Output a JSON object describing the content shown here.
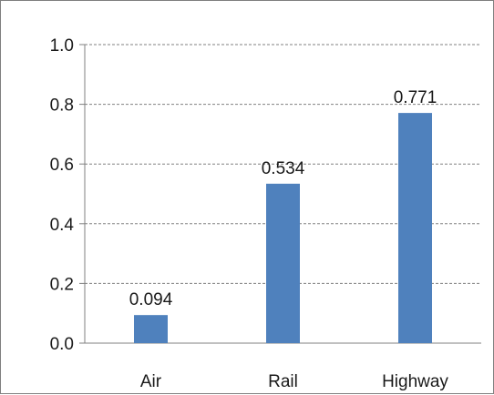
{
  "chart_data": {
    "type": "bar",
    "title": "",
    "xlabel": "",
    "ylabel": "",
    "categories": [
      "Air",
      "Rail",
      "Highway"
    ],
    "values": [
      0.094,
      0.534,
      0.771
    ],
    "data_labels": [
      "0.094",
      "0.534",
      "0.771"
    ],
    "ylim": [
      0,
      1.0
    ],
    "yticks": [
      0.0,
      0.2,
      0.4,
      0.6,
      0.8,
      1.0
    ],
    "ytick_labels": [
      "0.0",
      "0.2",
      "0.4",
      "0.6",
      "0.8",
      "1.0"
    ],
    "grid": "horizontal dashed",
    "legend": "none",
    "bar_color": "#4f81bd",
    "grid_color": "#808080"
  }
}
